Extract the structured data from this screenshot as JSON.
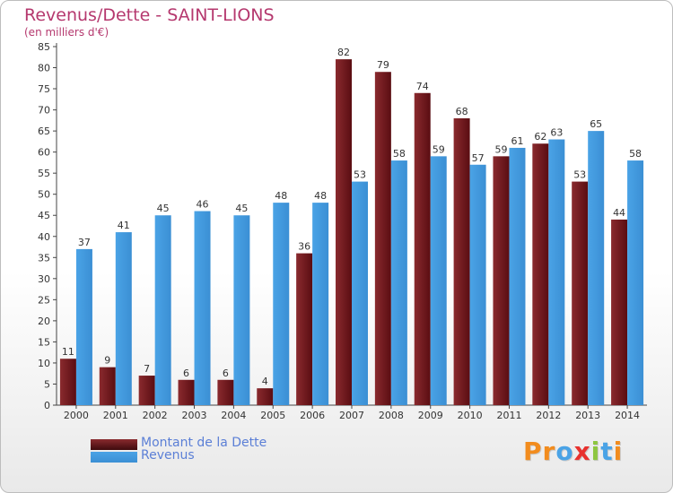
{
  "chart_data": {
    "type": "bar",
    "title": "Revenus/Dette - SAINT-LIONS",
    "subtitle": "(en milliers d'€)",
    "categories": [
      "2000",
      "2001",
      "2002",
      "2003",
      "2004",
      "2005",
      "2006",
      "2007",
      "2008",
      "2009",
      "2010",
      "2011",
      "2012",
      "2013",
      "2014"
    ],
    "series": [
      {
        "name": "Montant de la Dette",
        "color": "#8a2a2e",
        "values": [
          11,
          9,
          7,
          6,
          6,
          4,
          36,
          82,
          79,
          74,
          68,
          59,
          62,
          53,
          44
        ]
      },
      {
        "name": "Revenus",
        "color": "#4aa3e6",
        "values": [
          37,
          41,
          45,
          46,
          45,
          48,
          48,
          53,
          58,
          59,
          57,
          61,
          63,
          65,
          58
        ]
      }
    ],
    "ylim": [
      0,
      85
    ],
    "yticks": [
      0,
      5,
      10,
      15,
      20,
      25,
      30,
      35,
      40,
      45,
      50,
      55,
      60,
      65,
      70,
      75,
      80,
      85
    ],
    "grid": false,
    "legend_position": "bottom-left"
  },
  "logo": {
    "letters": [
      "P",
      "r",
      "o",
      "x",
      "i",
      "t",
      "i"
    ],
    "colors": [
      "#f28c1e",
      "#f28c1e",
      "#4aa3e6",
      "#e8312e",
      "#8dc63f",
      "#4aa3e6",
      "#f28c1e"
    ]
  }
}
